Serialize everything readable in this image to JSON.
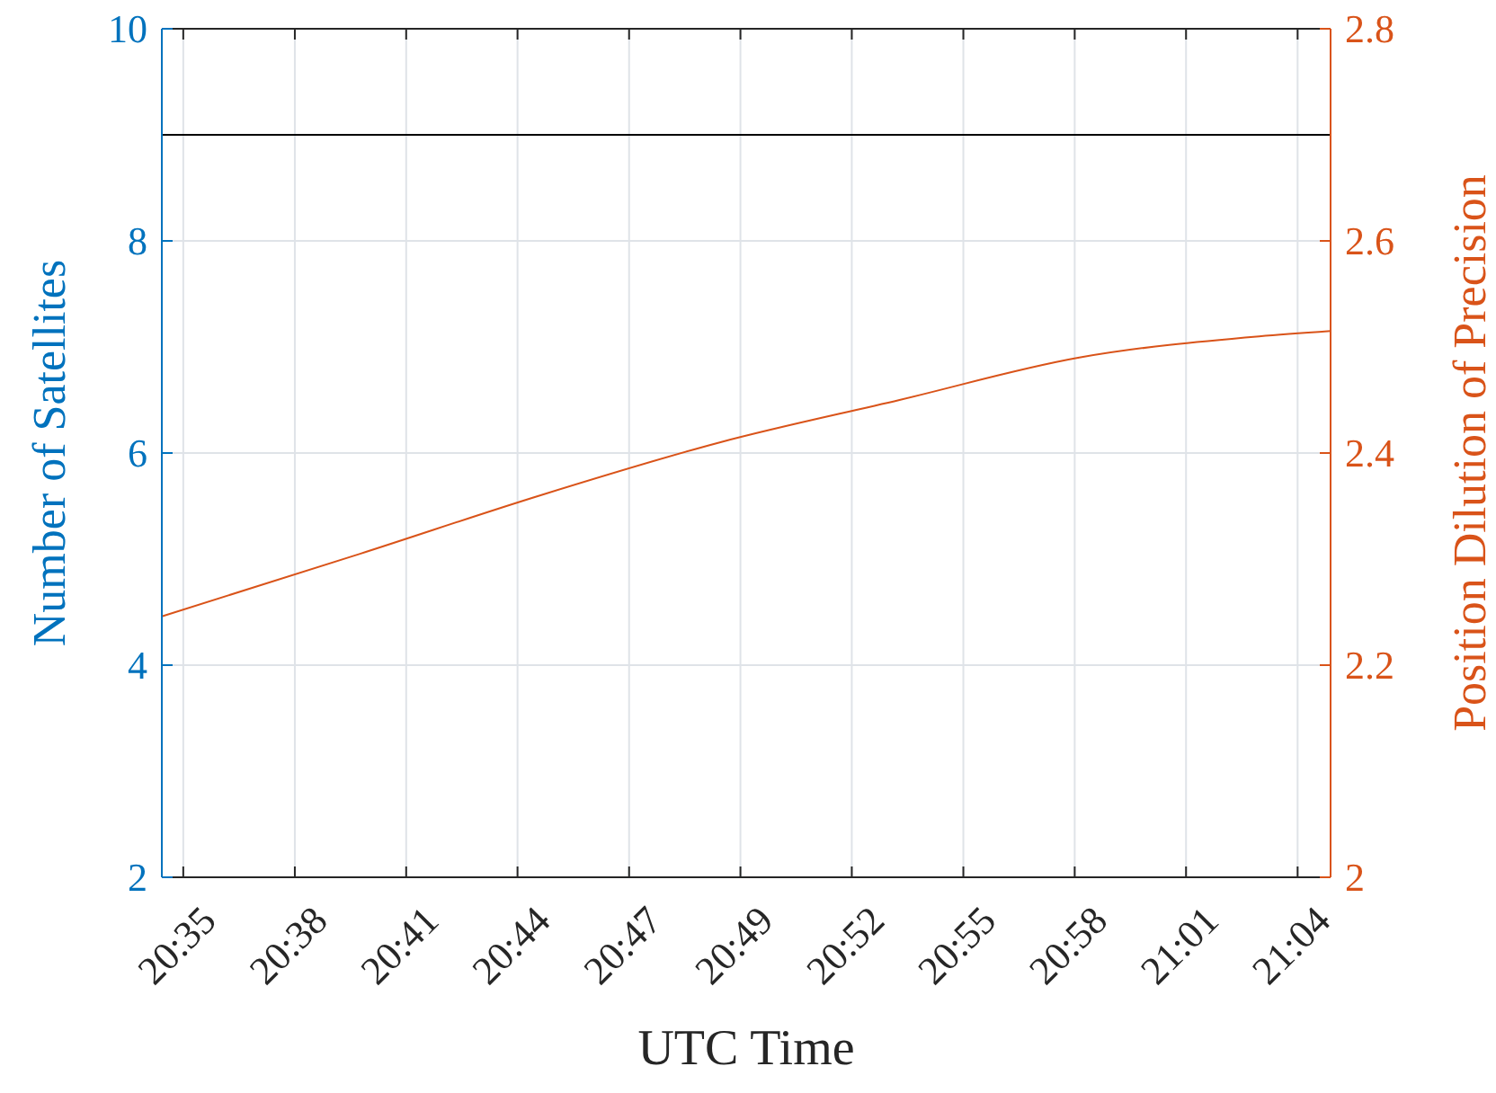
{
  "chart_data": {
    "type": "line",
    "xlabel": "UTC Time",
    "ylabel": "Number of Satellites",
    "y2label": "Position Dilution of Precision",
    "xlim": [
      20.574,
      21.081
    ],
    "xticks": [
      {
        "value": 20.5833,
        "label": "20:35"
      },
      {
        "value": 20.6317,
        "label": "20:38"
      },
      {
        "value": 20.68,
        "label": "20:41"
      },
      {
        "value": 20.7283,
        "label": "20:44"
      },
      {
        "value": 20.7767,
        "label": "20:47"
      },
      {
        "value": 20.825,
        "label": "20:49"
      },
      {
        "value": 20.8733,
        "label": "20:52"
      },
      {
        "value": 20.9217,
        "label": "20:55"
      },
      {
        "value": 20.97,
        "label": "20:58"
      },
      {
        "value": 21.0183,
        "label": "21:01"
      },
      {
        "value": 21.0667,
        "label": "21:04"
      }
    ],
    "ylim": [
      2,
      10
    ],
    "yticks": [
      2,
      4,
      6,
      8,
      10
    ],
    "y2lim": [
      2,
      2.8
    ],
    "y2ticks": [
      2,
      2.2,
      2.4,
      2.6,
      2.8
    ],
    "grid": true,
    "series": [
      {
        "color": "#000000",
        "x": [
          20.574,
          21.081
        ],
        "values": [
          9,
          9
        ]
      },
      {
        "color": "#d95319",
        "axis": "y2",
        "x": [
          20.574,
          20.66,
          20.738,
          20.816,
          20.894,
          20.972,
          21.05,
          21.081
        ],
        "values": [
          2.246,
          2.305,
          2.36,
          2.41,
          2.45,
          2.49,
          2.51,
          2.515
        ]
      }
    ]
  }
}
